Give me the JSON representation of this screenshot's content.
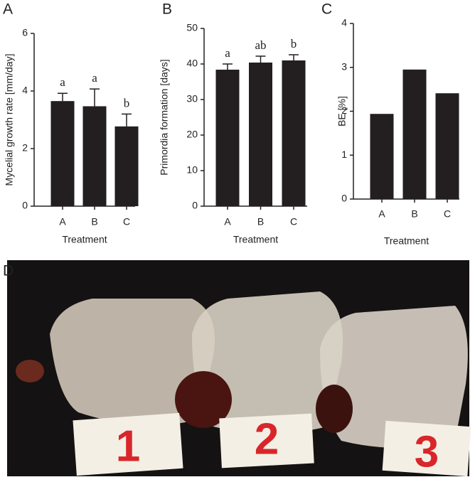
{
  "chart_data": [
    {
      "type": "bar",
      "panel_label": "A",
      "ylabel": "Mycelial growth rate [mm/day]",
      "xlabel": "Treatment",
      "categories": [
        "A",
        "B",
        "C"
      ],
      "values": [
        3.65,
        3.47,
        2.77
      ],
      "errors": [
        0.27,
        0.6,
        0.43
      ],
      "annotations": [
        "a",
        "a",
        "b"
      ],
      "color": "#231f20",
      "ylim": [
        0,
        6
      ],
      "yticks": [
        0,
        2,
        4,
        6
      ]
    },
    {
      "type": "bar",
      "panel_label": "B",
      "ylabel": "Primordia formation [days]",
      "xlabel": "Treatment",
      "categories": [
        "A",
        "B",
        "C"
      ],
      "values": [
        38.4,
        40.4,
        41.0
      ],
      "errors": [
        1.6,
        1.8,
        1.6
      ],
      "annotations": [
        "a",
        "ab",
        "b"
      ],
      "color": "#231f20",
      "ylim": [
        0,
        50
      ],
      "yticks": [
        0,
        10,
        20,
        30,
        40,
        50
      ]
    },
    {
      "type": "bar",
      "panel_label": "C",
      "ylabel": "BE [%]",
      "xlabel": "Treatment",
      "categories": [
        "A",
        "B",
        "C"
      ],
      "values": [
        1.94,
        2.95,
        2.41
      ],
      "color": "#231f20",
      "ylim": [
        0,
        4
      ],
      "yticks": [
        0,
        1,
        2,
        3,
        4
      ]
    }
  ],
  "photo": {
    "panel_label": "D",
    "card_labels": [
      "1",
      "2",
      "3"
    ]
  }
}
